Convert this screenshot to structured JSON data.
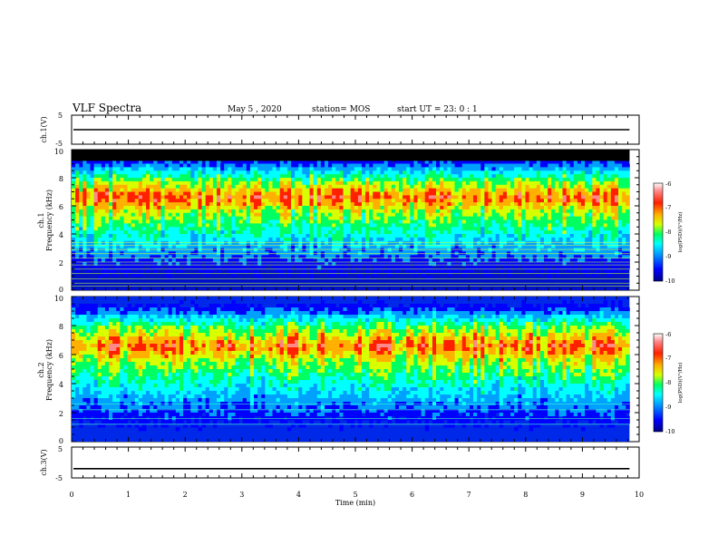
{
  "header": {
    "title": "VLF Spectra",
    "date": "May 5 , 2020",
    "station": "station= MOS",
    "start_ut": "start UT = 23: 0 : 1"
  },
  "colors": {
    "background": "#ffffff",
    "axis": "#000000",
    "upper_band_black": "#000000",
    "colormap": [
      "#00008a",
      "#0000ff",
      "#00a0ff",
      "#00ffff",
      "#00ff60",
      "#d8ff00",
      "#ffb000",
      "#ff2000",
      "#ff8888",
      "#ffffff"
    ]
  },
  "chart_data": [
    {
      "type": "line",
      "panel": "ch1-waveform",
      "ylabel": "ch.1(V)",
      "ylim": [
        -5,
        5
      ],
      "ytick_labels": [
        "5",
        "-5"
      ],
      "series_level": 0,
      "xlim": [
        0,
        10
      ]
    },
    {
      "type": "heatmap",
      "panel": "ch1-spectrogram",
      "ylabel_channel": "ch.1",
      "ylabel": "Frequency (kHz)",
      "ylim": [
        0,
        10
      ],
      "ytick_labels": [
        "0",
        "2",
        "4",
        "6",
        "8",
        "10"
      ],
      "xlim": [
        0,
        10
      ],
      "data_extent_x": [
        0,
        9.83
      ],
      "saturated_above_khz": 9.2,
      "high_power_band_khz": [
        5.5,
        7.6
      ],
      "noise_lines_khz": [
        0.3,
        0.5,
        0.8,
        1.2,
        1.5,
        1.8,
        2.0,
        2.3,
        2.6,
        2.9,
        3.2,
        3.4
      ],
      "colorbar": {
        "label": "log(PSD)(V²/Hz)",
        "tick_labels": [
          "-6",
          "-7",
          "-8",
          "-9",
          "-10"
        ],
        "range": [
          -10,
          -6
        ]
      }
    },
    {
      "type": "heatmap",
      "panel": "ch2-spectrogram",
      "ylabel_channel": "ch.2",
      "ylabel": "Frequency (kHz)",
      "ylim": [
        0,
        10
      ],
      "ytick_labels": [
        "0",
        "2",
        "4",
        "6",
        "8",
        "10"
      ],
      "xlim": [
        0,
        10
      ],
      "data_extent_x": [
        0,
        9.83
      ],
      "high_power_band_khz": [
        5.4,
        7.7
      ],
      "noise_lines_khz": [
        1.2,
        1.6,
        2.2,
        2.6
      ],
      "colorbar": {
        "label": "log(PSD)(V²/Hz)",
        "tick_labels": [
          "-6",
          "-7",
          "-8",
          "-9",
          "-10"
        ],
        "range": [
          -10,
          -6
        ]
      }
    },
    {
      "type": "line",
      "panel": "ch3-waveform",
      "ylabel": "ch.3(V)",
      "ylim": [
        -5,
        5
      ],
      "ytick_labels": [
        "5",
        "-5"
      ],
      "series_level": -2,
      "xlim": [
        0,
        10
      ],
      "xlabel": "Time (min)",
      "xtick_labels": [
        "0",
        "1",
        "2",
        "3",
        "4",
        "5",
        "6",
        "7",
        "8",
        "9",
        "10"
      ]
    }
  ]
}
